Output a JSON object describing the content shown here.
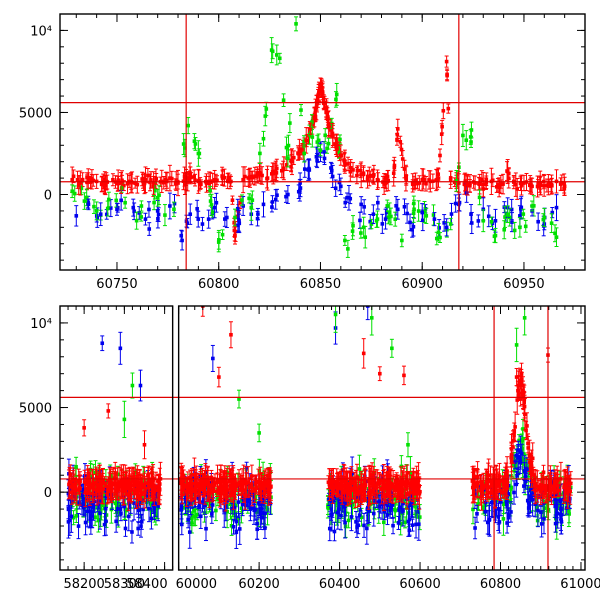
{
  "chart_data": [
    {
      "type": "scatter",
      "title": "",
      "xlabel": "",
      "ylabel": "",
      "xlim": [
        60722,
        60980
      ],
      "ylim": [
        -4600,
        11000
      ],
      "x_ticks": [
        60750,
        60800,
        60850,
        60900,
        60950
      ],
      "x_tick_labels": [
        "60750",
        "60800",
        "60850",
        "60900",
        "60950"
      ],
      "y_ticks": [
        0,
        5000,
        10000
      ],
      "y_tick_labels": [
        "0",
        "5000",
        "10⁴"
      ],
      "hlines": [
        5600,
        780
      ],
      "vlines": [
        60784,
        60918
      ],
      "grid": false,
      "legend": "none",
      "colors": {
        "red": "#ff0000",
        "blue": "#0000ee",
        "green": "#00e000",
        "ref": "#e00000"
      },
      "series": [
        {
          "color": "red",
          "points": [
            [
              60728,
              900
            ],
            [
              60732,
              700
            ],
            [
              60736,
              1000
            ],
            [
              60740,
              800
            ],
            [
              60744,
              600
            ],
            [
              60748,
              900
            ],
            [
              60752,
              700
            ],
            [
              60756,
              800
            ],
            [
              60760,
              600
            ],
            [
              60764,
              900
            ],
            [
              60768,
              700
            ],
            [
              60772,
              800
            ],
            [
              60776,
              1000
            ],
            [
              60780,
              700
            ],
            [
              60784,
              900
            ],
            [
              60786,
              1200
            ],
            [
              60790,
              800
            ],
            [
              60794,
              700
            ],
            [
              60798,
              900
            ],
            [
              60802,
              1000
            ],
            [
              60806,
              800
            ],
            [
              60808,
              -2500
            ],
            [
              60812,
              900
            ],
            [
              60816,
              1100
            ],
            [
              60820,
              1200
            ],
            [
              60824,
              1000
            ],
            [
              60828,
              1400
            ],
            [
              60832,
              1600
            ],
            [
              60836,
              2000
            ],
            [
              60840,
              2600
            ],
            [
              60843,
              3300
            ],
            [
              60845,
              4000
            ],
            [
              60847,
              4700
            ],
            [
              60848,
              5300
            ],
            [
              60849,
              6100
            ],
            [
              60850,
              6700
            ],
            [
              60851,
              6200
            ],
            [
              60852,
              5600
            ],
            [
              60853,
              5000
            ],
            [
              60854,
              4300
            ],
            [
              60856,
              3600
            ],
            [
              60858,
              3000
            ],
            [
              60860,
              2400
            ],
            [
              60862,
              2000
            ],
            [
              60866,
              1500
            ],
            [
              60870,
              1200
            ],
            [
              60874,
              1100
            ],
            [
              60878,
              900
            ],
            [
              60882,
              800
            ],
            [
              60886,
              1300
            ],
            [
              60888,
              4000
            ],
            [
              60892,
              1000
            ],
            [
              60896,
              700
            ],
            [
              60900,
              900
            ],
            [
              60904,
              800
            ],
            [
              60908,
              1000
            ],
            [
              60912,
              8100
            ],
            [
              60914,
              900
            ],
            [
              60918,
              700
            ],
            [
              60922,
              600
            ],
            [
              60926,
              700
            ],
            [
              60930,
              600
            ],
            [
              60934,
              800
            ],
            [
              60938,
              500
            ],
            [
              60942,
              1400
            ],
            [
              60946,
              600
            ],
            [
              60950,
              700
            ],
            [
              60954,
              500
            ],
            [
              60958,
              700
            ],
            [
              60962,
              600
            ],
            [
              60966,
              800
            ],
            [
              60970,
              500
            ]
          ]
        },
        {
          "color": "blue",
          "points": [
            [
              60730,
              -1300
            ],
            [
              60736,
              -600
            ],
            [
              60742,
              -1200
            ],
            [
              60750,
              -900
            ],
            [
              60758,
              -800
            ],
            [
              60764,
              -1500
            ],
            [
              60770,
              -1000
            ],
            [
              60776,
              -700
            ],
            [
              60782,
              -2800
            ],
            [
              60786,
              -1200
            ],
            [
              60792,
              -1800
            ],
            [
              60798,
              -800
            ],
            [
              60804,
              -1400
            ],
            [
              60810,
              -1600
            ],
            [
              60816,
              -1200
            ],
            [
              60822,
              -600
            ],
            [
              60828,
              -300
            ],
            [
              60834,
              0
            ],
            [
              60840,
              700
            ],
            [
              60844,
              1500
            ],
            [
              60848,
              2300
            ],
            [
              60850,
              2700
            ],
            [
              60852,
              2200
            ],
            [
              60856,
              1100
            ],
            [
              60860,
              500
            ],
            [
              60864,
              -200
            ],
            [
              60870,
              -600
            ],
            [
              60876,
              -1200
            ],
            [
              60882,
              -1500
            ],
            [
              60888,
              -900
            ],
            [
              60894,
              -1700
            ],
            [
              60900,
              -1100
            ],
            [
              60906,
              -1500
            ],
            [
              60912,
              -2000
            ],
            [
              60918,
              -600
            ],
            [
              60924,
              -1200
            ],
            [
              60930,
              -900
            ],
            [
              60936,
              -1600
            ],
            [
              60942,
              -800
            ],
            [
              60948,
              -1300
            ],
            [
              60954,
              -1000
            ],
            [
              60960,
              -1800
            ],
            [
              60966,
              -800
            ]
          ]
        },
        {
          "color": "green",
          "points": [
            [
              60728,
              200
            ],
            [
              60734,
              -400
            ],
            [
              60740,
              -1000
            ],
            [
              60746,
              -300
            ],
            [
              60754,
              -500
            ],
            [
              60762,
              -700
            ],
            [
              60770,
              -200
            ],
            [
              60778,
              -900
            ],
            [
              60785,
              4200
            ],
            [
              60790,
              2500
            ],
            [
              60796,
              -400
            ],
            [
              60800,
              -2900
            ],
            [
              60808,
              -1400
            ],
            [
              60816,
              -800
            ],
            [
              60822,
              3400
            ],
            [
              60826,
              8800
            ],
            [
              60830,
              8300
            ],
            [
              60834,
              2200
            ],
            [
              60838,
              10400
            ],
            [
              60842,
              2500
            ],
            [
              60846,
              3500
            ],
            [
              60850,
              2700
            ],
            [
              60854,
              3100
            ],
            [
              60858,
              6100
            ],
            [
              60862,
              -2800
            ],
            [
              60866,
              -1900
            ],
            [
              60872,
              -2600
            ],
            [
              60878,
              -1500
            ],
            [
              60884,
              -1100
            ],
            [
              60890,
              -2800
            ],
            [
              60896,
              -900
            ],
            [
              60902,
              -1300
            ],
            [
              60908,
              -2300
            ],
            [
              60914,
              -1800
            ],
            [
              60920,
              3600
            ],
            [
              60924,
              3200
            ],
            [
              60930,
              -1600
            ],
            [
              60936,
              -2500
            ],
            [
              60942,
              -1200
            ],
            [
              60948,
              -2000
            ],
            [
              60954,
              -700
            ],
            [
              60960,
              -1400
            ],
            [
              60966,
              -2600
            ]
          ]
        }
      ]
    },
    {
      "type": "scatter",
      "title": "",
      "xlabel": "",
      "ylabel": "",
      "xlim": [
        58140,
        61010
      ],
      "ylim": [
        -4600,
        11000
      ],
      "x_segments": [
        [
          58140,
          58420
        ],
        [
          60000,
          61010
        ]
      ],
      "x_ticks": [
        58200,
        58300,
        58400,
        60000,
        60200,
        60400,
        60600,
        60800,
        61000
      ],
      "x_tick_labels": [
        "58200",
        "58300",
        "58400",
        "60000",
        "60200",
        "60400",
        "60600",
        "60800",
        "61000"
      ],
      "y_ticks": [
        0,
        5000,
        10000
      ],
      "y_tick_labels": [
        "0",
        "5000",
        "10⁴"
      ],
      "hlines": [
        5600,
        780
      ],
      "vlines": [
        60784,
        60918
      ],
      "grid": false,
      "legend": "none",
      "colors": {
        "red": "#ff0000",
        "blue": "#0000ee",
        "green": "#00e000",
        "ref": "#e00000"
      },
      "season_ranges": [
        [
          58160,
          58390
        ],
        [
          60005,
          60230
        ],
        [
          60370,
          60600
        ],
        [
          60730,
          60975
        ]
      ],
      "series": [
        {
          "color": "red",
          "points": [
            [
              58200,
              3800
            ],
            [
              58260,
              4800
            ],
            [
              58350,
              2800
            ],
            [
              60060,
              11000
            ],
            [
              60100,
              6800
            ],
            [
              60130,
              9300
            ],
            [
              60460,
              8200
            ],
            [
              60500,
              7000
            ],
            [
              60560,
              6900
            ],
            [
              60840,
              6800
            ],
            [
              60850,
              5500
            ],
            [
              60880,
              2000
            ],
            [
              60918,
              8100
            ]
          ]
        },
        {
          "color": "blue",
          "points": [
            [
              58245,
              8800
            ],
            [
              58290,
              8500
            ],
            [
              58340,
              6300
            ],
            [
              60085,
              7900
            ],
            [
              60390,
              9700
            ],
            [
              60470,
              11000
            ],
            [
              60850,
              2400
            ]
          ]
        },
        {
          "color": "green",
          "points": [
            [
              58180,
              1500
            ],
            [
              58300,
              4300
            ],
            [
              58320,
              6300
            ],
            [
              60150,
              5500
            ],
            [
              60200,
              3500
            ],
            [
              60390,
              10500
            ],
            [
              60480,
              10300
            ],
            [
              60530,
              8500
            ],
            [
              60570,
              2800
            ],
            [
              60840,
              8700
            ],
            [
              60860,
              10300
            ]
          ]
        }
      ]
    }
  ]
}
